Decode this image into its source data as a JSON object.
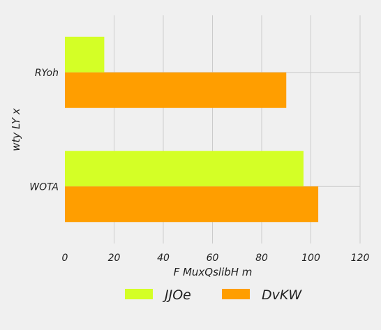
{
  "chart_data": {
    "type": "bar",
    "orientation": "horizontal",
    "title": "",
    "xlabel": "F MuxQslibH m",
    "ylabel": "wty LY x",
    "categories": [
      "WOTA",
      "RYoh"
    ],
    "series": [
      {
        "name": "JJOe",
        "values": [
          97,
          16
        ],
        "color": "#d4ff26"
      },
      {
        "name": "DvKW",
        "values": [
          103,
          90
        ],
        "color": "#ff9e00"
      }
    ],
    "xlim": [
      0,
      120
    ],
    "xticks": [
      0,
      20,
      40,
      60,
      80,
      100,
      120
    ],
    "grid": true,
    "legend_position": "bottom-center",
    "background": "#f0f0f0"
  }
}
